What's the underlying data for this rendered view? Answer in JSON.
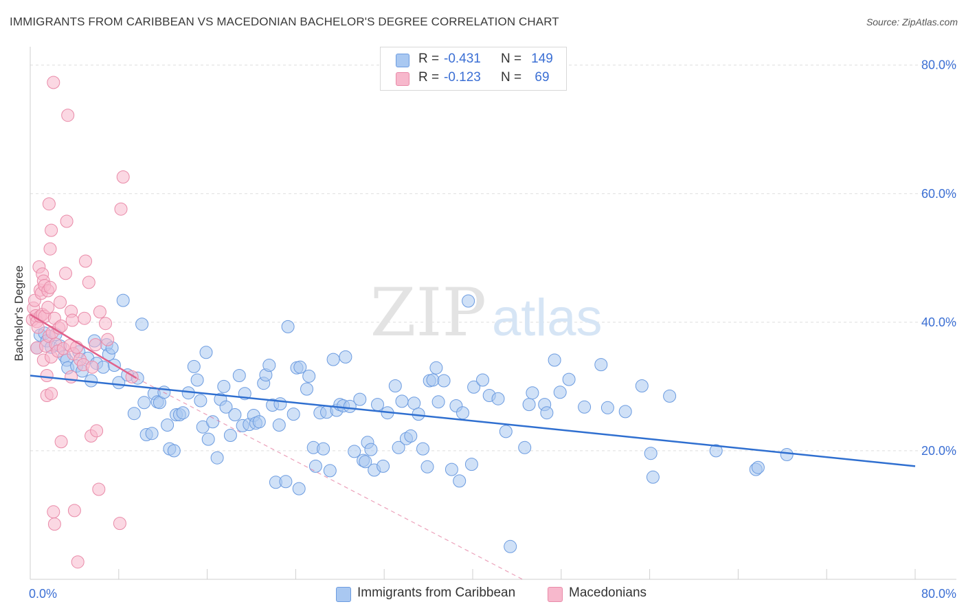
{
  "title": "IMMIGRANTS FROM CARIBBEAN VS MACEDONIAN BACHELOR'S DEGREE CORRELATION CHART",
  "source": "Source: ZipAtlas.com",
  "watermark": {
    "zip": "ZIP",
    "atlas": "atlas"
  },
  "legend": {
    "rows": [
      {
        "r_label": "R =",
        "r_value": "-0.431",
        "n_label": "N =",
        "n_value": "149",
        "color": "#a9c8f1",
        "border": "#6b9be0"
      },
      {
        "r_label": "R =",
        "r_value": "-0.123",
        "n_label": "N =",
        "n_value": "69",
        "color": "#f7b8cc",
        "border": "#e98aa8"
      }
    ]
  },
  "chart_data": {
    "type": "scatter",
    "title": "IMMIGRANTS FROM CARIBBEAN VS MACEDONIAN BACHELOR'S DEGREE CORRELATION CHART",
    "xlabel": "",
    "ylabel": "Bachelor's Degree",
    "xlim": [
      0,
      80
    ],
    "ylim": [
      0,
      82
    ],
    "x_tick_labels": [
      "0.0%",
      "80.0%"
    ],
    "y_ticks": [
      20,
      40,
      60,
      80
    ],
    "y_tick_labels": [
      "20.0%",
      "40.0%",
      "60.0%",
      "80.0%"
    ],
    "grid": true,
    "legend_position": "top-center",
    "series": [
      {
        "name": "Immigrants from Caribbean",
        "color": "#a9c8f1",
        "stroke": "#6b9be0",
        "line_color": "#2f6fd0",
        "trend": {
          "x": [
            0,
            80
          ],
          "y": [
            31.7,
            17.6
          ]
        },
        "points": [
          [
            0.6,
            36.0
          ],
          [
            0.9,
            38.0
          ],
          [
            1.3,
            38.3
          ],
          [
            1.5,
            37.1
          ],
          [
            1.9,
            36.1
          ],
          [
            2.3,
            38.1
          ],
          [
            2.7,
            36.3
          ],
          [
            3.1,
            34.7
          ],
          [
            3.3,
            34.1
          ],
          [
            3.4,
            32.9
          ],
          [
            4.2,
            33.2
          ],
          [
            4.4,
            35.4
          ],
          [
            4.7,
            32.4
          ],
          [
            5.2,
            34.4
          ],
          [
            5.5,
            30.9
          ],
          [
            5.8,
            37.1
          ],
          [
            6.0,
            33.6
          ],
          [
            6.6,
            33.0
          ],
          [
            6.9,
            36.5
          ],
          [
            7.1,
            35.0
          ],
          [
            7.4,
            36.0
          ],
          [
            7.6,
            33.3
          ],
          [
            8.0,
            30.6
          ],
          [
            8.4,
            43.4
          ],
          [
            8.8,
            31.8
          ],
          [
            9.4,
            25.8
          ],
          [
            9.7,
            31.3
          ],
          [
            10.1,
            39.7
          ],
          [
            10.3,
            27.5
          ],
          [
            10.5,
            22.5
          ],
          [
            11.0,
            22.7
          ],
          [
            11.2,
            28.9
          ],
          [
            11.5,
            27.6
          ],
          [
            11.7,
            27.5
          ],
          [
            12.1,
            29.1
          ],
          [
            12.4,
            24.0
          ],
          [
            12.6,
            20.3
          ],
          [
            13.0,
            20.0
          ],
          [
            13.2,
            25.6
          ],
          [
            13.5,
            25.6
          ],
          [
            13.8,
            25.9
          ],
          [
            14.3,
            29.0
          ],
          [
            14.8,
            33.1
          ],
          [
            15.1,
            31.0
          ],
          [
            15.4,
            27.8
          ],
          [
            15.6,
            23.7
          ],
          [
            15.9,
            35.3
          ],
          [
            16.1,
            21.8
          ],
          [
            16.5,
            24.5
          ],
          [
            16.9,
            18.9
          ],
          [
            17.2,
            28.0
          ],
          [
            17.5,
            30.0
          ],
          [
            17.7,
            26.8
          ],
          [
            18.1,
            22.4
          ],
          [
            18.5,
            25.6
          ],
          [
            18.9,
            31.7
          ],
          [
            19.2,
            23.9
          ],
          [
            19.4,
            28.9
          ],
          [
            19.8,
            24.1
          ],
          [
            20.2,
            25.5
          ],
          [
            20.4,
            24.3
          ],
          [
            20.7,
            24.5
          ],
          [
            21.1,
            30.5
          ],
          [
            21.3,
            31.8
          ],
          [
            21.6,
            33.3
          ],
          [
            21.9,
            27.1
          ],
          [
            22.2,
            15.1
          ],
          [
            22.5,
            24.0
          ],
          [
            22.6,
            27.3
          ],
          [
            23.1,
            15.2
          ],
          [
            23.3,
            39.3
          ],
          [
            23.8,
            25.7
          ],
          [
            24.1,
            32.9
          ],
          [
            24.4,
            33.0
          ],
          [
            24.3,
            14.1
          ],
          [
            25.0,
            29.6
          ],
          [
            25.2,
            31.6
          ],
          [
            25.6,
            20.5
          ],
          [
            25.8,
            17.6
          ],
          [
            26.2,
            25.9
          ],
          [
            26.5,
            20.3
          ],
          [
            26.8,
            26.0
          ],
          [
            27.1,
            16.9
          ],
          [
            27.4,
            34.2
          ],
          [
            27.7,
            26.3
          ],
          [
            28.0,
            27.2
          ],
          [
            28.3,
            27.0
          ],
          [
            28.5,
            34.6
          ],
          [
            28.9,
            26.9
          ],
          [
            29.3,
            19.9
          ],
          [
            29.8,
            28.0
          ],
          [
            30.1,
            18.5
          ],
          [
            30.3,
            18.3
          ],
          [
            30.5,
            21.3
          ],
          [
            30.8,
            20.2
          ],
          [
            31.1,
            17.0
          ],
          [
            31.4,
            27.2
          ],
          [
            31.9,
            17.6
          ],
          [
            32.3,
            25.9
          ],
          [
            33.0,
            30.1
          ],
          [
            33.3,
            20.5
          ],
          [
            33.6,
            27.7
          ],
          [
            34.0,
            21.9
          ],
          [
            34.4,
            22.3
          ],
          [
            34.7,
            27.4
          ],
          [
            35.1,
            25.7
          ],
          [
            35.5,
            20.3
          ],
          [
            35.9,
            17.5
          ],
          [
            36.1,
            30.9
          ],
          [
            36.4,
            31.0
          ],
          [
            36.7,
            32.9
          ],
          [
            36.9,
            27.6
          ],
          [
            37.4,
            30.9
          ],
          [
            38.1,
            17.1
          ],
          [
            38.5,
            27.0
          ],
          [
            38.8,
            15.3
          ],
          [
            39.1,
            25.9
          ],
          [
            39.6,
            43.3
          ],
          [
            39.9,
            17.9
          ],
          [
            40.1,
            29.9
          ],
          [
            40.9,
            31.0
          ],
          [
            41.5,
            28.6
          ],
          [
            42.3,
            28.1
          ],
          [
            43.0,
            23.0
          ],
          [
            43.4,
            5.1
          ],
          [
            44.7,
            20.5
          ],
          [
            45.1,
            27.2
          ],
          [
            45.4,
            29.0
          ],
          [
            46.5,
            27.2
          ],
          [
            46.7,
            25.9
          ],
          [
            47.4,
            34.1
          ],
          [
            47.9,
            29.1
          ],
          [
            48.7,
            31.1
          ],
          [
            50.1,
            26.8
          ],
          [
            51.6,
            33.4
          ],
          [
            52.2,
            26.7
          ],
          [
            53.8,
            26.1
          ],
          [
            55.3,
            30.1
          ],
          [
            56.1,
            19.6
          ],
          [
            56.3,
            15.9
          ],
          [
            57.8,
            28.5
          ],
          [
            62.0,
            20.0
          ],
          [
            65.6,
            17.1
          ],
          [
            65.8,
            17.4
          ],
          [
            68.4,
            19.4
          ]
        ]
      },
      {
        "name": "Macedonians",
        "color": "#f7b8cc",
        "stroke": "#e98aa8",
        "line_color": "#e0628c",
        "trend": {
          "x": [
            0,
            9.6
          ],
          "y": [
            41.2,
            31.3
          ]
        },
        "trend_dashed": {
          "x": [
            9.6,
            44.5
          ],
          "y": [
            31.3,
            0
          ]
        },
        "points": [
          [
            0.2,
            40.4
          ],
          [
            0.3,
            42.2
          ],
          [
            0.4,
            43.4
          ],
          [
            0.5,
            41.0
          ],
          [
            0.6,
            40.1
          ],
          [
            0.6,
            36.0
          ],
          [
            0.7,
            39.2
          ],
          [
            0.8,
            48.6
          ],
          [
            0.9,
            45.0
          ],
          [
            0.9,
            40.9
          ],
          [
            1.0,
            44.5
          ],
          [
            1.1,
            47.5
          ],
          [
            1.1,
            41.2
          ],
          [
            1.2,
            46.4
          ],
          [
            1.2,
            34.1
          ],
          [
            1.3,
            45.7
          ],
          [
            1.3,
            40.9
          ],
          [
            1.4,
            36.3
          ],
          [
            1.5,
            31.7
          ],
          [
            1.5,
            28.6
          ],
          [
            1.6,
            42.3
          ],
          [
            1.6,
            44.9
          ],
          [
            1.7,
            37.8
          ],
          [
            1.7,
            58.4
          ],
          [
            1.8,
            51.4
          ],
          [
            1.8,
            45.4
          ],
          [
            1.9,
            34.6
          ],
          [
            1.9,
            54.3
          ],
          [
            1.9,
            28.9
          ],
          [
            2.0,
            38.4
          ],
          [
            2.1,
            77.3
          ],
          [
            2.1,
            10.5
          ],
          [
            2.2,
            40.6
          ],
          [
            2.2,
            8.6
          ],
          [
            2.3,
            36.6
          ],
          [
            2.5,
            35.5
          ],
          [
            2.6,
            39.1
          ],
          [
            2.7,
            43.1
          ],
          [
            2.8,
            21.4
          ],
          [
            2.8,
            39.4
          ],
          [
            3.0,
            35.9
          ],
          [
            3.2,
            47.6
          ],
          [
            3.3,
            55.7
          ],
          [
            3.4,
            72.2
          ],
          [
            3.6,
            36.4
          ],
          [
            3.7,
            41.7
          ],
          [
            3.7,
            31.5
          ],
          [
            3.8,
            40.3
          ],
          [
            3.9,
            35.1
          ],
          [
            4.0,
            10.7
          ],
          [
            4.2,
            36.1
          ],
          [
            4.3,
            2.7
          ],
          [
            4.5,
            34.2
          ],
          [
            4.8,
            33.4
          ],
          [
            4.9,
            40.6
          ],
          [
            5.0,
            49.5
          ],
          [
            5.3,
            46.2
          ],
          [
            5.5,
            22.3
          ],
          [
            5.6,
            33.0
          ],
          [
            5.9,
            36.5
          ],
          [
            6.0,
            23.1
          ],
          [
            6.2,
            14.0
          ],
          [
            6.3,
            41.6
          ],
          [
            6.8,
            39.8
          ],
          [
            7.0,
            37.3
          ],
          [
            8.1,
            8.7
          ],
          [
            8.2,
            57.6
          ],
          [
            8.4,
            62.6
          ],
          [
            9.2,
            31.5
          ]
        ]
      }
    ]
  },
  "bottom_legend": [
    "Immigrants from Caribbean",
    "Macedonians"
  ]
}
